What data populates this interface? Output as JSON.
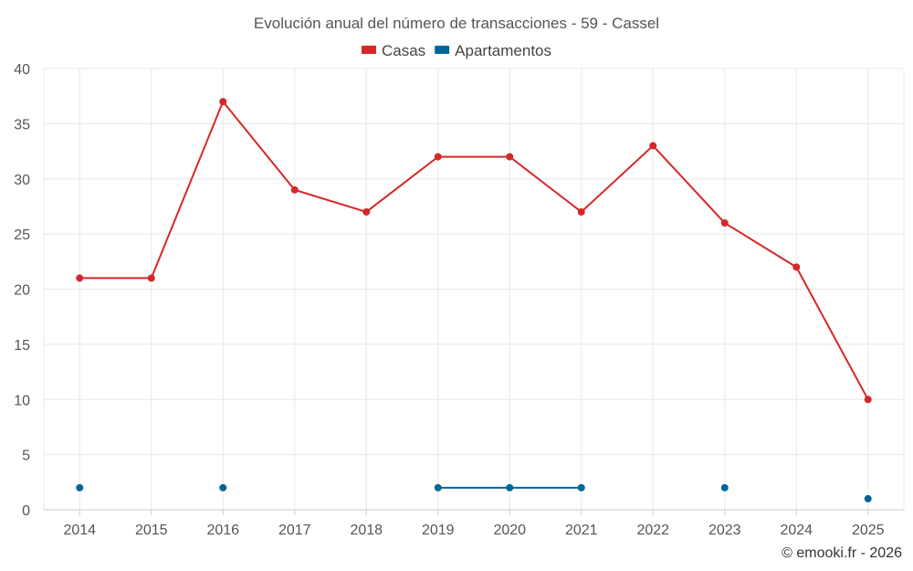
{
  "chart_data": {
    "type": "line",
    "title": "Evolución anual del número de transacciones - 59 - Cassel",
    "categories": [
      "2014",
      "2015",
      "2016",
      "2017",
      "2018",
      "2019",
      "2020",
      "2021",
      "2022",
      "2023",
      "2024",
      "2025"
    ],
    "ylim": [
      0,
      40
    ],
    "yticks": [
      0,
      5,
      10,
      15,
      20,
      25,
      30,
      35,
      40
    ],
    "grid": true,
    "legend_position": "top-center",
    "series": [
      {
        "name": "Casas",
        "color": "#d62728",
        "values": [
          21,
          21,
          37,
          29,
          27,
          32,
          32,
          27,
          33,
          26,
          22,
          10
        ]
      },
      {
        "name": "Apartamentos",
        "color": "#006699",
        "values": [
          2,
          null,
          2,
          null,
          null,
          2,
          2,
          2,
          null,
          2,
          null,
          1
        ]
      }
    ],
    "xlabel": "",
    "ylabel": ""
  },
  "credit": "© emooki.fr - 2026"
}
